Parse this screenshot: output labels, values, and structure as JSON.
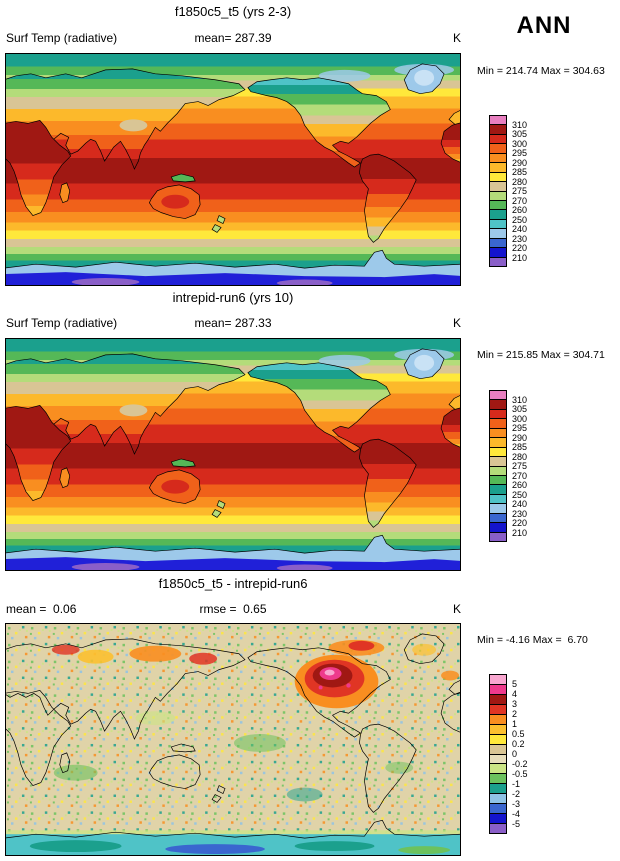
{
  "season": "ANN",
  "chart_data": [
    {
      "type": "heatmap",
      "panel": "top",
      "title": "f1850c5_t5 (yrs 2-3)",
      "variable": "Surf Temp (radiative)",
      "mean_text": "mean= 287.39",
      "mean": 287.39,
      "units": "K",
      "min": 214.74,
      "max": 304.63,
      "stats_text": "Min = 214.74 Max = 304.63",
      "projection": "global latitude-longitude",
      "legend_position": "right",
      "colorbar": {
        "labels": [
          "310",
          "305",
          "300",
          "295",
          "290",
          "285",
          "280",
          "275",
          "270",
          "260",
          "250",
          "240",
          "230",
          "220",
          "210"
        ],
        "levels": [
          310,
          305,
          300,
          295,
          290,
          285,
          280,
          275,
          270,
          260,
          250,
          240,
          230,
          220,
          210
        ],
        "colors": [
          "#e87fc0",
          "#a01813",
          "#d62a1c",
          "#f0611a",
          "#f98e20",
          "#fcb92b",
          "#ffe83b",
          "#d9c595",
          "#b4dc7a",
          "#55b857",
          "#1ba08d",
          "#4fc3c7",
          "#9dc9ea",
          "#3a66cf",
          "#1414cd",
          "#8a5fc8"
        ]
      }
    },
    {
      "type": "heatmap",
      "panel": "middle",
      "title": "intrepid-run6 (yrs 10)",
      "variable": "Surf Temp (radiative)",
      "mean_text": "mean= 287.33",
      "mean": 287.33,
      "units": "K",
      "min": 215.85,
      "max": 304.71,
      "stats_text": "Min = 215.85 Max = 304.71",
      "projection": "global latitude-longitude",
      "legend_position": "right",
      "colorbar": {
        "labels": [
          "310",
          "305",
          "300",
          "295",
          "290",
          "285",
          "280",
          "275",
          "270",
          "260",
          "250",
          "240",
          "230",
          "220",
          "210"
        ],
        "levels": [
          310,
          305,
          300,
          295,
          290,
          285,
          280,
          275,
          270,
          260,
          250,
          240,
          230,
          220,
          210
        ],
        "colors": [
          "#e87fc0",
          "#a01813",
          "#d62a1c",
          "#f0611a",
          "#f98e20",
          "#fcb92b",
          "#ffe83b",
          "#d9c595",
          "#b4dc7a",
          "#55b857",
          "#1ba08d",
          "#4fc3c7",
          "#9dc9ea",
          "#3a66cf",
          "#1414cd",
          "#8a5fc8"
        ]
      }
    },
    {
      "type": "heatmap",
      "panel": "bottom-difference",
      "title": "f1850c5_t5 - intrepid-run6",
      "mean_text": "mean =  0.06",
      "mean": 0.06,
      "rmse_text": "rmse =  0.65",
      "rmse": 0.65,
      "units": "K",
      "min": -4.16,
      "max": 6.7,
      "stats_text": "Min = -4.16 Max =  6.70",
      "projection": "global latitude-longitude",
      "legend_position": "right",
      "colorbar": {
        "labels": [
          "5",
          "4",
          "3",
          "2",
          "1",
          "0.5",
          "0.2",
          "0",
          "-0.2",
          "-0.5",
          "-1",
          "-2",
          "-3",
          "-4",
          "-5"
        ],
        "levels": [
          5,
          4,
          3,
          2,
          1,
          0.5,
          0.2,
          0,
          -0.2,
          -0.5,
          -1,
          -2,
          -3,
          -4,
          -5
        ],
        "colors": [
          "#f9a7d0",
          "#ee3a8c",
          "#a01813",
          "#e03524",
          "#f98e20",
          "#fcc02f",
          "#ffe83b",
          "#d9c595",
          "#e7ddbb",
          "#cbe585",
          "#6cc25e",
          "#1ba08d",
          "#8fc3e6",
          "#3a66cf",
          "#1414cd",
          "#8a5fc8"
        ]
      }
    }
  ]
}
